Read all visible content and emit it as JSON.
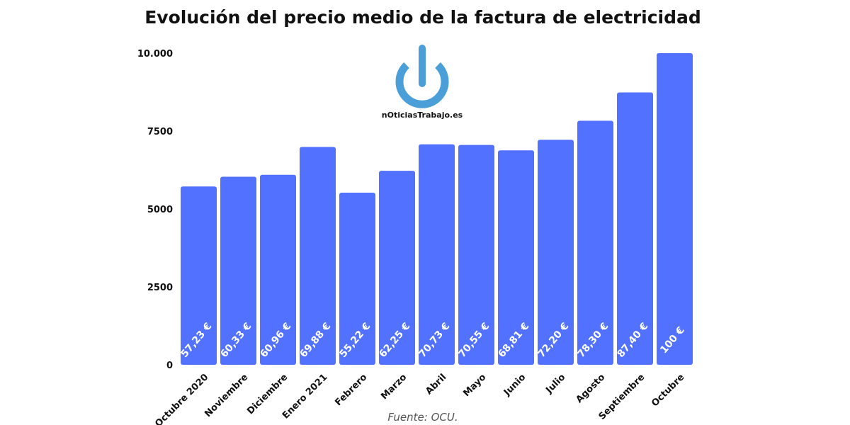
{
  "title": "Evolución del precio medio de la factura de electricidad",
  "source": "Fuente: OCU.",
  "logo": {
    "text": "nOticiasTrabajo.es",
    "icon": "power-icon",
    "color": "#4a9fd8"
  },
  "colors": {
    "bar": "#5271ff",
    "label": "#ffffff",
    "text": "#111111"
  },
  "chart_data": {
    "type": "bar",
    "title": "Evolución del precio medio de la factura de electricidad",
    "xlabel": "",
    "ylabel": "",
    "ylim": [
      0,
      10000
    ],
    "yticks": [
      0,
      2500,
      5000,
      7500,
      10000
    ],
    "ytick_labels": [
      "0",
      "2500",
      "5000",
      "7500",
      "10.000"
    ],
    "grid": false,
    "categories": [
      "Octubre 2020",
      "Noviembre",
      "Diciembre",
      "Enero 2021",
      "Febrero",
      "Marzo",
      "Abril",
      "Mayo",
      "Junio",
      "Julio",
      "Agosto",
      "Septiembre",
      "Octubre"
    ],
    "values": [
      5723,
      6033,
      6096,
      6988,
      5522,
      6225,
      7073,
      7055,
      6881,
      7220,
      7830,
      8740,
      10000
    ],
    "data_labels": [
      "57,23 €",
      "60,33 €",
      "60,96 €",
      "69,88 €",
      "55,22 €",
      "62,25 €",
      "70,73 €",
      "70,55 €",
      "68,81 €",
      "72,20 €",
      "78,30 €",
      "87,40 €",
      "100 €"
    ]
  }
}
